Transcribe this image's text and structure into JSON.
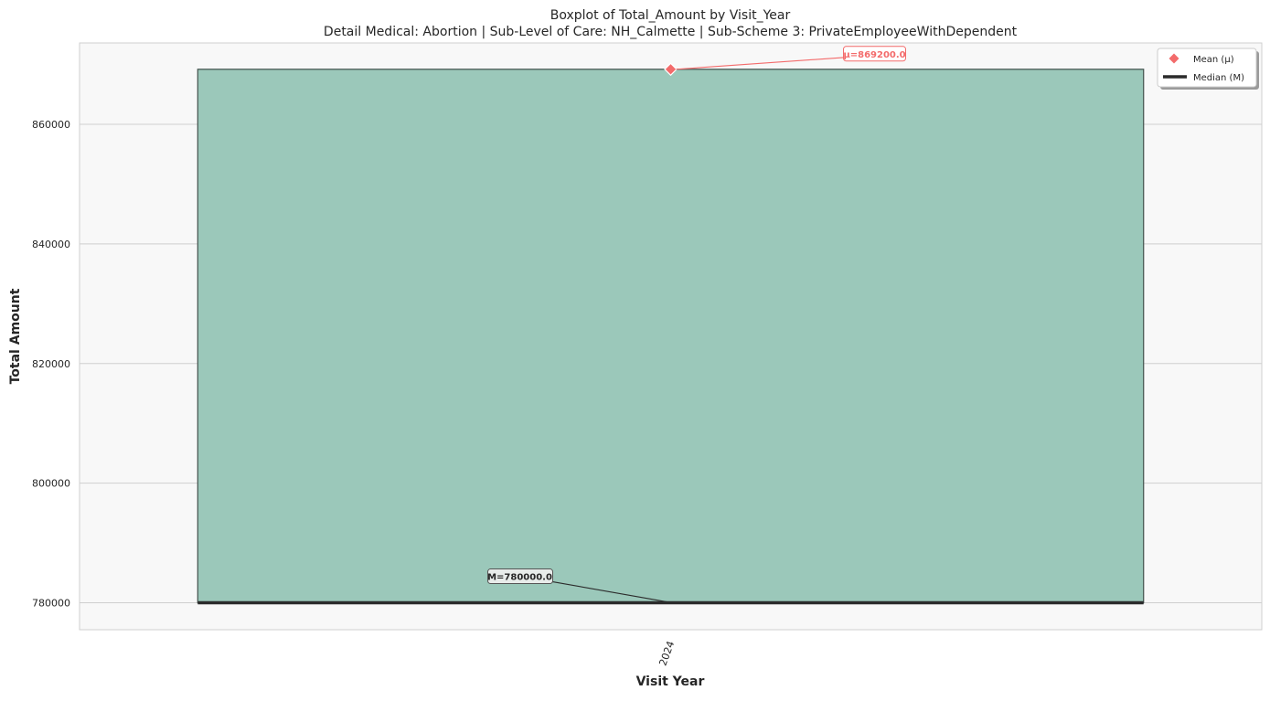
{
  "chart_data": {
    "type": "box",
    "title": "Boxplot of Total_Amount by Visit_Year",
    "subtitle": "Detail Medical: Abortion | Sub-Level of Care: NH_Calmette | Sub-Scheme 3: PrivateEmployeeWithDependent",
    "xlabel": "Visit Year",
    "ylabel": "Total Amount",
    "categories": [
      "2024"
    ],
    "boxes": [
      {
        "category": "2024",
        "q1": 780000,
        "median": 780000,
        "q3": 869200,
        "whisker_low": 780000,
        "whisker_high": 869200,
        "mean": 869200
      }
    ],
    "ylim": [
      775500,
      873600
    ],
    "yticks": [
      780000,
      800000,
      820000,
      840000,
      860000
    ],
    "grid": true,
    "legend": {
      "placement": "top-right",
      "items": [
        {
          "label": "Mean (μ)",
          "marker": "diamond",
          "color": "#f36b6b"
        },
        {
          "label": "Median (M)",
          "marker": "line",
          "color": "#2b2b2b"
        }
      ]
    },
    "annotations": {
      "mean_label": "μ=869200.0",
      "median_label": "M=780000.0"
    },
    "colors": {
      "box_fill": "#9bc8ba",
      "box_edge": "#4a5a55",
      "mean": "#f36b6b",
      "median": "#2b2b2b",
      "plot_bg": "#f8f8f8",
      "grid": "#cfcfcf"
    }
  }
}
